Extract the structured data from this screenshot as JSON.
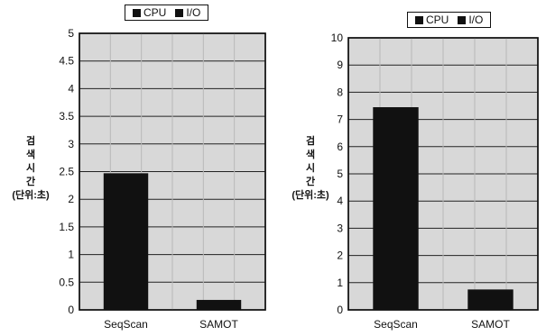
{
  "legend": [
    "CPU",
    "I/O"
  ],
  "chart_data": [
    {
      "type": "bar",
      "categories": [
        "SeqScan",
        "SAMOT"
      ],
      "series": [
        {
          "name": "CPU",
          "values": [
            2.47,
            0.18
          ]
        }
      ],
      "legend": [
        "CPU",
        "I/O"
      ],
      "ylabel_chars": [
        "검",
        "색",
        "시",
        "간"
      ],
      "ylabel_unit": "(단위:초)",
      "ylim": [
        0,
        5
      ],
      "yticks": [
        0,
        0.5,
        1,
        1.5,
        2,
        2.5,
        3,
        3.5,
        4,
        4.5,
        5
      ],
      "ytick_labels": [
        "0",
        "0.5",
        "1",
        "1.5",
        "2",
        "2.5",
        "3",
        "3.5",
        "4",
        "4.5",
        "5"
      ],
      "legend_position": "top",
      "grid": true,
      "bar_color": "#111111",
      "plot_background": "#d8d8d8"
    },
    {
      "type": "bar",
      "categories": [
        "SeqScan",
        "SAMOT"
      ],
      "series": [
        {
          "name": "CPU",
          "values": [
            7.45,
            0.75
          ]
        }
      ],
      "legend": [
        "CPU",
        "I/O"
      ],
      "ylabel_chars": [
        "검",
        "색",
        "시",
        "간"
      ],
      "ylabel_unit": "(단위:초)",
      "ylim": [
        0,
        10
      ],
      "yticks": [
        0,
        1,
        2,
        3,
        4,
        5,
        6,
        7,
        8,
        9,
        10
      ],
      "ytick_labels": [
        "0",
        "1",
        "2",
        "3",
        "4",
        "5",
        "6",
        "7",
        "8",
        "9",
        "10"
      ],
      "legend_position": "top",
      "grid": true,
      "bar_color": "#111111",
      "plot_background": "#d8d8d8"
    }
  ]
}
